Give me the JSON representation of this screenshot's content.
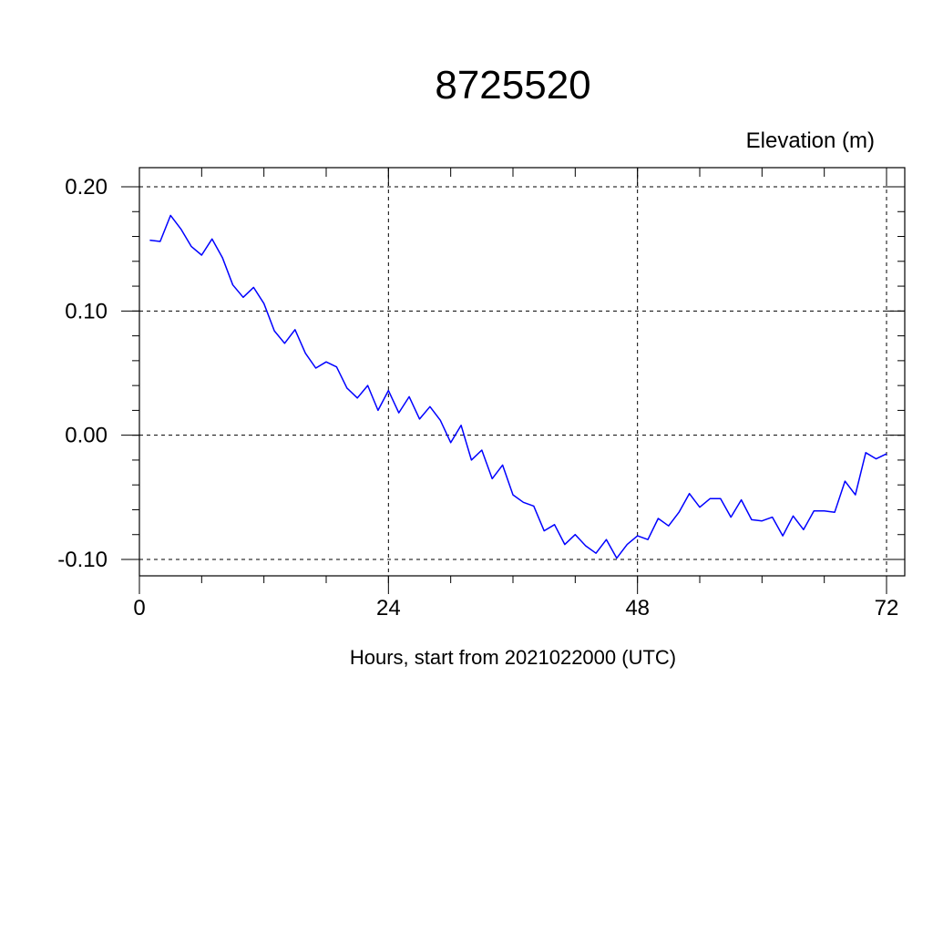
{
  "chart_data": {
    "type": "line",
    "title": "8725520",
    "ylabel": "Elevation (m)",
    "xlabel": "Hours, start from 2021022000 (UTC)",
    "xlim": [
      0,
      72
    ],
    "ylim": [
      -0.1,
      0.2
    ],
    "xticks": [
      0,
      24,
      48,
      72
    ],
    "xtick_labels": [
      "0",
      "24",
      "48",
      "72"
    ],
    "yticks": [
      -0.1,
      0.0,
      0.1,
      0.2
    ],
    "ytick_labels": [
      "-0.10",
      "0.00",
      "0.10",
      "0.20"
    ],
    "grid": true,
    "series_color": "#0000ff",
    "series": [
      {
        "x": [
          1,
          2,
          3,
          4,
          5,
          6,
          7,
          8,
          9,
          10,
          11,
          12,
          13,
          14,
          15,
          16,
          17,
          18,
          19,
          20,
          21,
          22,
          23,
          24,
          25,
          26,
          27,
          28,
          29,
          30,
          31,
          32,
          33,
          34,
          35,
          36,
          37,
          38,
          39,
          40,
          41,
          42,
          43,
          44,
          45,
          46,
          47,
          48,
          49,
          50,
          51,
          52,
          53,
          54,
          55,
          56,
          57,
          58,
          59,
          60,
          61,
          62,
          63,
          64,
          65,
          66,
          67,
          68,
          69,
          70,
          71,
          72
        ],
        "values": [
          0.157,
          0.156,
          0.177,
          0.166,
          0.152,
          0.145,
          0.158,
          0.143,
          0.121,
          0.111,
          0.119,
          0.106,
          0.084,
          0.074,
          0.085,
          0.066,
          0.054,
          0.059,
          0.055,
          0.038,
          0.03,
          0.04,
          0.02,
          0.036,
          0.018,
          0.031,
          0.013,
          0.023,
          0.012,
          -0.006,
          0.008,
          -0.02,
          -0.012,
          -0.035,
          -0.024,
          -0.048,
          -0.054,
          -0.057,
          -0.077,
          -0.072,
          -0.088,
          -0.08,
          -0.089,
          -0.095,
          -0.084,
          -0.099,
          -0.088,
          -0.081,
          -0.084,
          -0.067,
          -0.073,
          -0.062,
          -0.047,
          -0.058,
          -0.051,
          -0.051,
          -0.066,
          -0.052,
          -0.068,
          -0.069,
          -0.066,
          -0.081,
          -0.065,
          -0.076,
          -0.061,
          -0.061,
          -0.062,
          -0.037,
          -0.048,
          -0.014,
          -0.019,
          -0.015
        ]
      }
    ]
  }
}
